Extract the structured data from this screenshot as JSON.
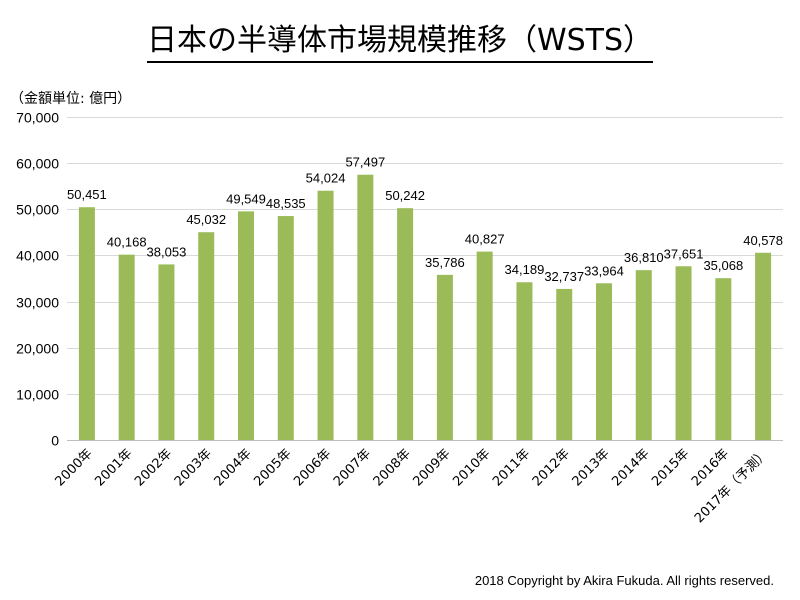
{
  "header": {
    "title": "日本の半導体市場規模推移（WSTS）",
    "unit_label": "（金額単位: 億円）"
  },
  "footer": {
    "copyright": "2018 Copyright by Akira Fukuda. All rights reserved."
  },
  "chart_data": {
    "type": "bar",
    "title": "日本の半導体市場規模推移（WSTS）",
    "ylabel": "（金額単位: 億円）",
    "xlabel": "",
    "categories": [
      "2000年",
      "2001年",
      "2002年",
      "2003年",
      "2004年",
      "2005年",
      "2006年",
      "2007年",
      "2008年",
      "2009年",
      "2010年",
      "2011年",
      "2012年",
      "2013年",
      "2014年",
      "2015年",
      "2016年",
      "2017年（予測）"
    ],
    "values": [
      50451,
      40168,
      38053,
      45032,
      49549,
      48535,
      54024,
      57497,
      50242,
      35786,
      40827,
      34189,
      32737,
      33964,
      36810,
      37651,
      35068,
      40578
    ],
    "data_labels": [
      "50,451",
      "40,168",
      "38,053",
      "45,032",
      "49,549",
      "48,535",
      "54,024",
      "57,497",
      "50,242",
      "35,786",
      "40,827",
      "34,189",
      "32,737",
      "33,964",
      "36,810",
      "37,651",
      "35,068",
      "40,578"
    ],
    "ylim": [
      0,
      70000
    ],
    "yticks": [
      0,
      10000,
      20000,
      30000,
      40000,
      50000,
      60000,
      70000
    ],
    "ytick_labels": [
      "0",
      "10,000",
      "20,000",
      "30,000",
      "40,000",
      "50,000",
      "60,000",
      "70,000"
    ],
    "grid": true,
    "legend": "none",
    "bar_color": "#9BBB59",
    "grid_color": "#D9D9D9"
  }
}
